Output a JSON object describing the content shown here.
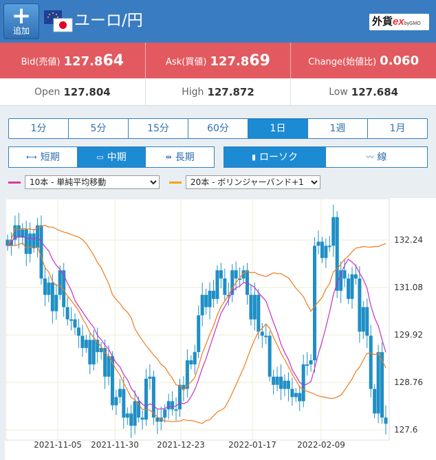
{
  "header": {
    "add_label": "追加",
    "pair_title": "ユーロ/円",
    "brand_main": "外貨",
    "brand_ex": "ex",
    "brand_sub": "byGMO"
  },
  "quotes": {
    "bid": {
      "label": "Bid(売値)",
      "value_head": "127.8",
      "value_tail": "64"
    },
    "ask": {
      "label": "Ask(買値)",
      "value_head": "127.8",
      "value_tail": "69"
    },
    "change": {
      "label": "Change(始値比)",
      "value": "0.060"
    }
  },
  "stats": {
    "open": {
      "label": "Open",
      "value": "127.804"
    },
    "high": {
      "label": "High",
      "value": "127.872"
    },
    "low": {
      "label": "Low",
      "value": "127.684"
    }
  },
  "periods": [
    "1分",
    "5分",
    "15分",
    "60分",
    "1日",
    "1週",
    "1月"
  ],
  "active_period": "1日",
  "spans": [
    "短期",
    "中期",
    "長期"
  ],
  "active_span": "中期",
  "chart_styles": [
    "ローソク",
    "線"
  ],
  "active_style": "ローソク",
  "indicators": {
    "ma": {
      "selected": "10本 - 単純平均移動",
      "color": "#d63c9a"
    },
    "bb": {
      "selected": "20本 - ボリンジャーバンド+1",
      "color": "#f0a500"
    }
  },
  "colors": {
    "header": "#3a7cc1",
    "quote_bar": "#e25a5f",
    "candle": "#1f8fc6",
    "ma_line": "#c52fc2",
    "bb_line": "#f07a1a",
    "accent": "#1d8ad4"
  },
  "chart_data": {
    "type": "candlestick",
    "y_ticks": [
      "132.24",
      "131.08",
      "129.92",
      "128.76",
      "127.6"
    ],
    "x_ticks": [
      "2021-11-05",
      "2021-11-30",
      "2021-12-23",
      "2022-01-17",
      "2022-02-09"
    ],
    "ylim": [
      127.35,
      133.25
    ],
    "grid": true,
    "close": [
      132.1,
      132.25,
      132.6,
      132.3,
      132.5,
      131.9,
      132.4,
      132.05,
      132.6,
      131.3,
      130.9,
      131.2,
      130.5,
      130.9,
      131.5,
      130.6,
      130.3,
      130.3,
      130.1,
      129.9,
      129.6,
      129.8,
      129.2,
      129.8,
      129.5,
      129.6,
      128.9,
      129.4,
      128.2,
      128.4,
      128.6,
      127.9,
      128.0,
      127.7,
      128.3,
      127.9,
      127.85,
      128.85,
      128.9,
      127.9,
      127.8,
      127.9,
      128.1,
      128.3,
      128.1,
      128.1,
      128.7,
      128.6,
      129.3,
      129.2,
      129.5,
      130.4,
      130.9,
      130.6,
      131.0,
      130.8,
      131.5,
      131.3,
      130.9,
      130.9,
      131.5,
      131.3,
      131.3,
      131.5,
      130.9,
      130.3,
      130.9,
      130.0,
      129.9,
      129.9,
      128.9,
      128.7,
      128.9,
      128.6,
      128.8,
      128.6,
      128.4,
      128.5,
      128.3,
      129.2,
      129.2,
      129.3,
      132.1,
      132.2,
      131.8,
      132.1,
      132.1,
      132.8,
      131.0,
      131.5,
      131.3,
      130.8,
      131.4,
      131.3,
      130.0,
      130.6,
      129.9,
      128.6,
      128.0,
      129.5,
      127.9,
      127.75
    ]
  }
}
